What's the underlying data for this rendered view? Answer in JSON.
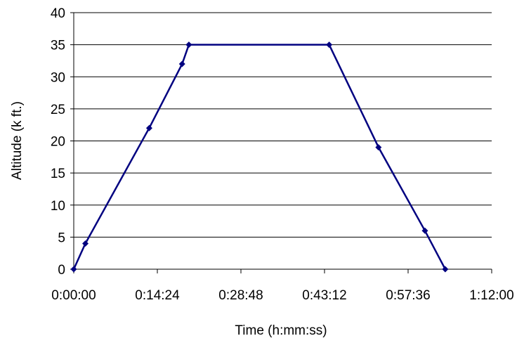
{
  "chart_data": {
    "type": "line",
    "title": "",
    "xlabel": "Time (h:mm:ss)",
    "ylabel": "Altitude (k ft.)",
    "x_unit": "h:mm:ss",
    "xlim": [
      "0:00:00",
      "1:12:00"
    ],
    "ylim": [
      0,
      40
    ],
    "x_ticks": [
      "0:00:00",
      "0:14:24",
      "0:28:48",
      "0:43:12",
      "0:57:36",
      "1:12:00"
    ],
    "y_ticks": [
      "0",
      "5",
      "10",
      "15",
      "20",
      "25",
      "30",
      "35",
      "40"
    ],
    "grid": "horizontal",
    "legend": "none",
    "series": [
      {
        "color": "#000080",
        "marker": "diamond",
        "points": [
          {
            "x": "0:00:00",
            "y": 0
          },
          {
            "x": "0:02:00",
            "y": 4
          },
          {
            "x": "0:13:00",
            "y": 22
          },
          {
            "x": "0:18:40",
            "y": 32
          },
          {
            "x": "0:19:50",
            "y": 35
          },
          {
            "x": "0:44:00",
            "y": 35
          },
          {
            "x": "0:52:30",
            "y": 19
          },
          {
            "x": "1:00:30",
            "y": 6
          },
          {
            "x": "1:04:00",
            "y": 0
          }
        ]
      }
    ]
  }
}
